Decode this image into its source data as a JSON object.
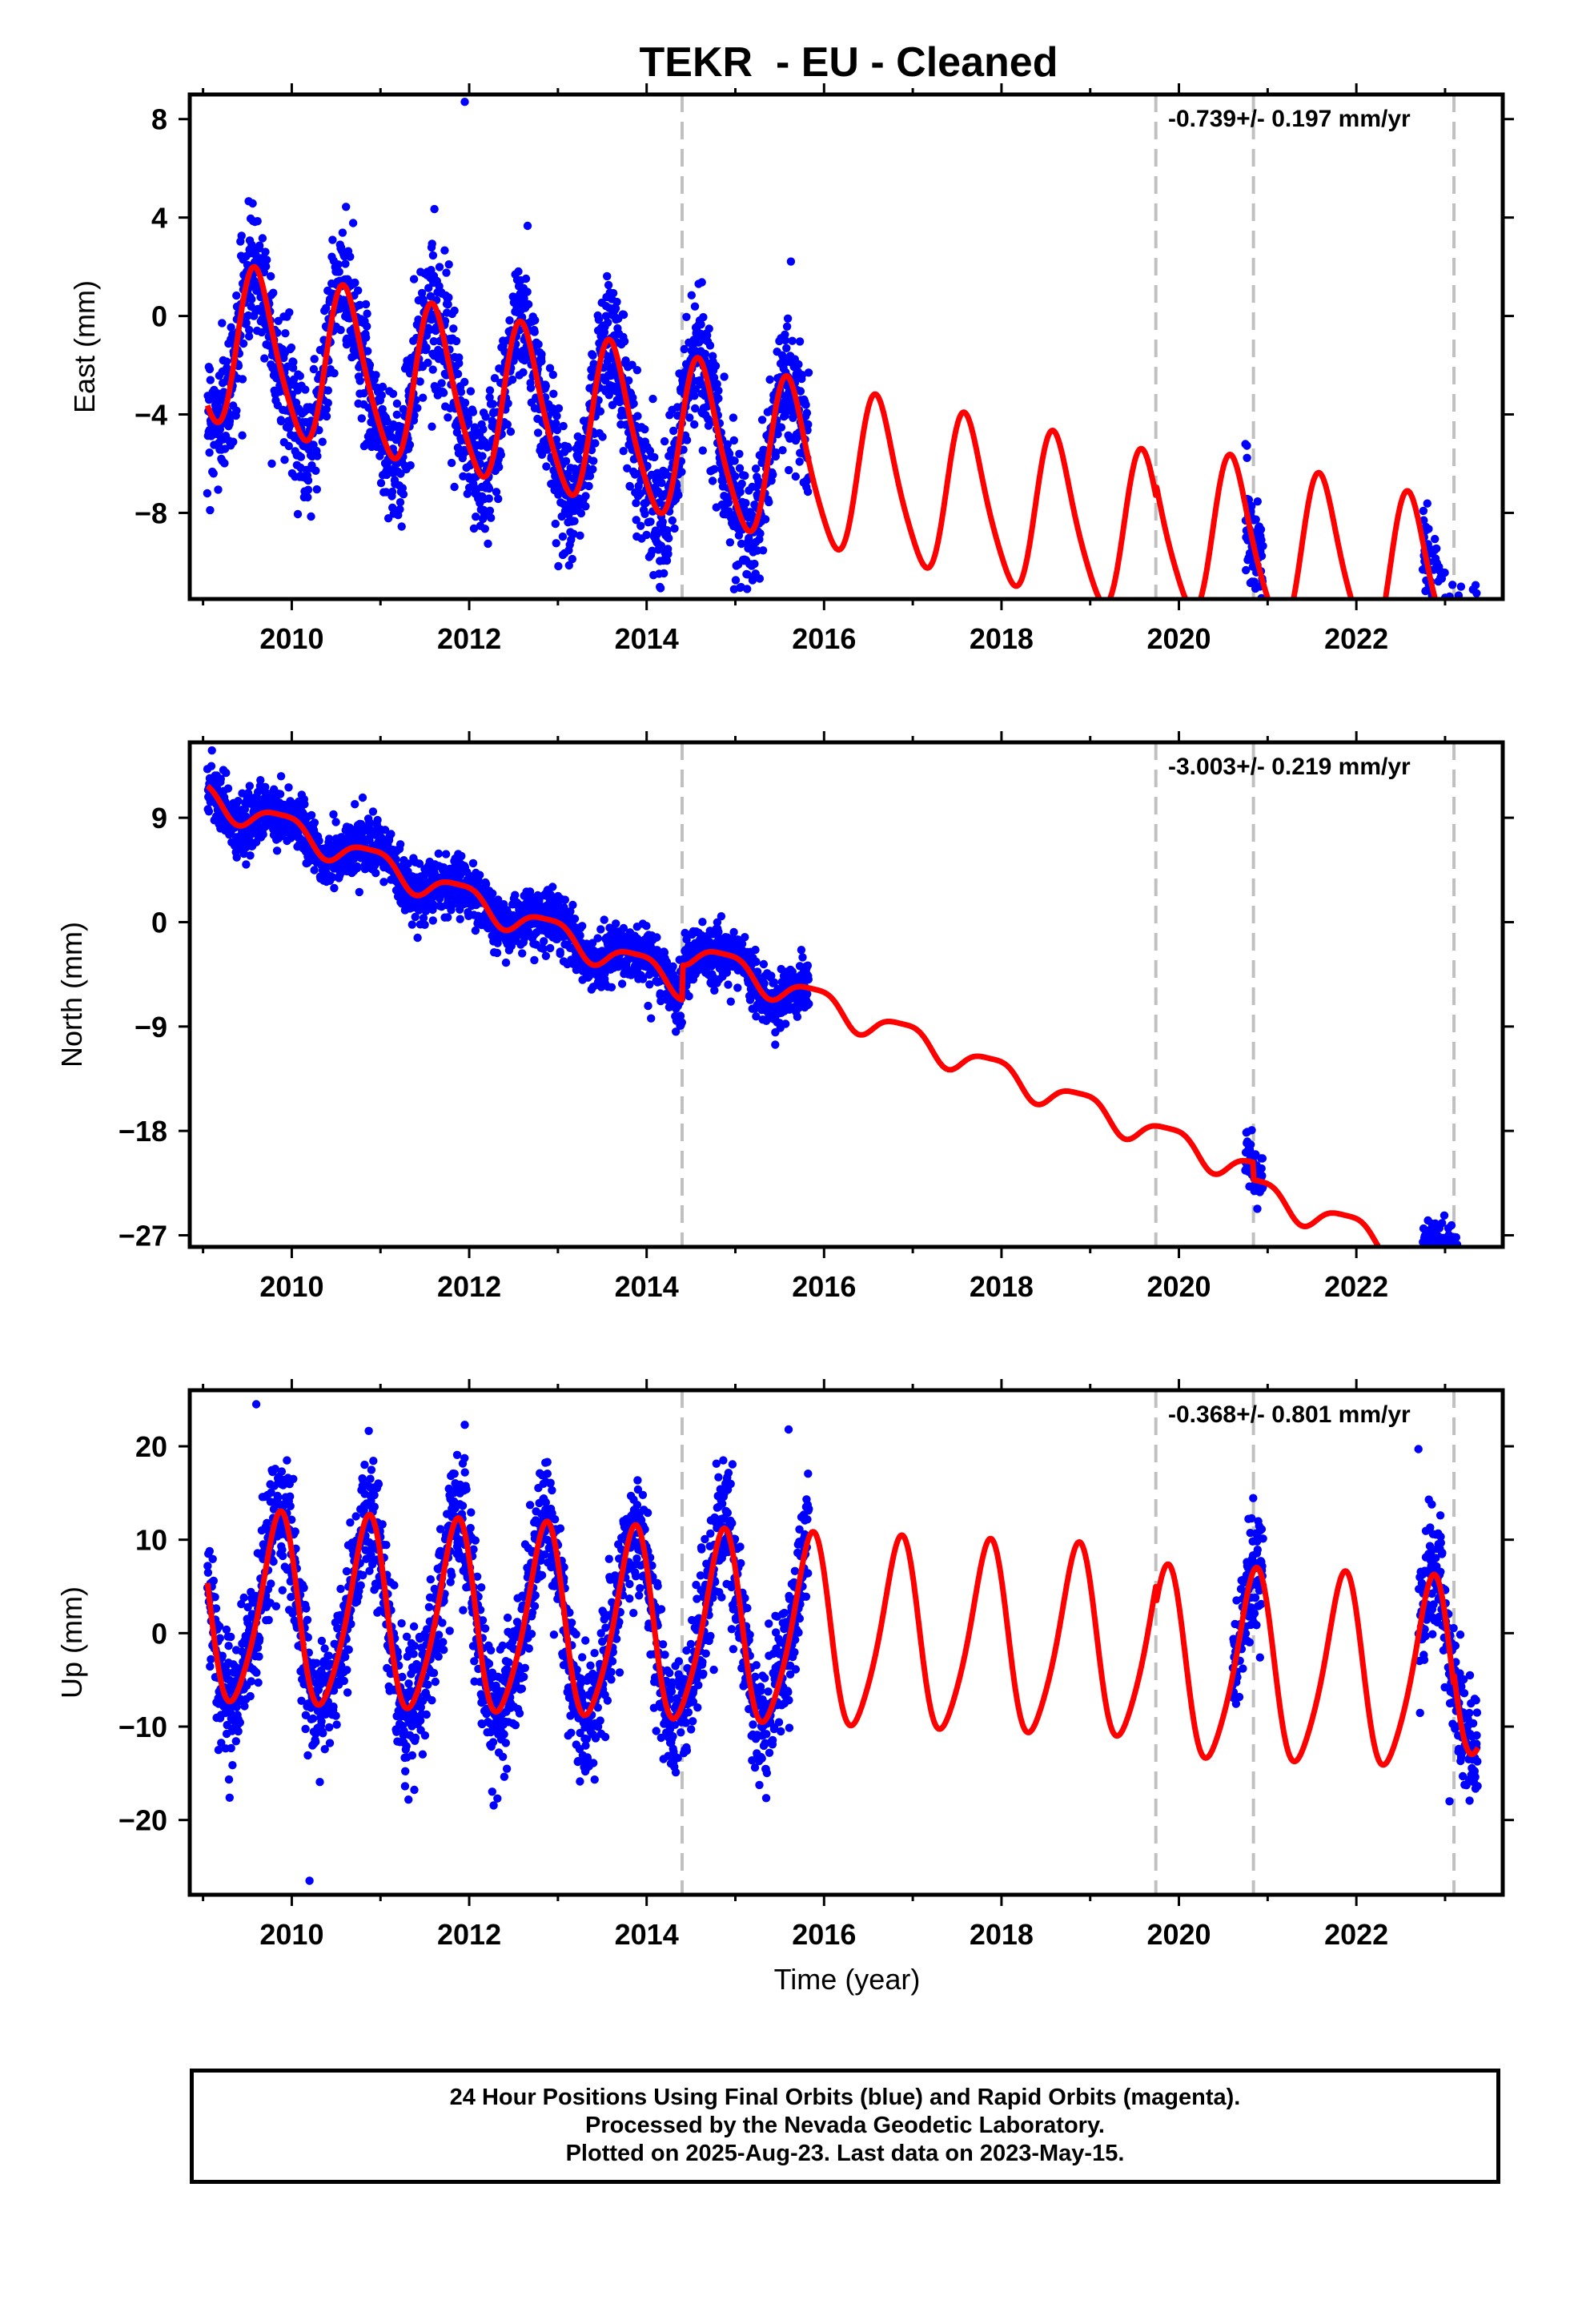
{
  "title": "TEKR  - EU - Cleaned",
  "xlabel": "Time (year)",
  "footer": {
    "line1": "24 Hour Positions Using Final Orbits (blue) and Rapid Orbits (magenta).",
    "line2": "Processed by the Nevada Geodetic Laboratory.",
    "line3": "Plotted on 2025-Aug-23. Last data on 2023-May-15."
  },
  "colors": {
    "data": "#0000ff",
    "model": "#ff0000",
    "breaks": "#c0c0c0",
    "axes": "#000000"
  },
  "chart_data": [
    {
      "type": "scatter",
      "component": "east",
      "ylabel": "East (mm)",
      "rate_text": "-0.739+/- 0.197 mm/yr",
      "xlim": [
        2008.85,
        2023.65
      ],
      "ylim": [
        -11.5,
        9
      ],
      "yticks": [
        8,
        4,
        0,
        -4,
        -8
      ],
      "xticks": [
        2010,
        2012,
        2014,
        2016,
        2018,
        2020,
        2022
      ],
      "breaks": [
        2014.4,
        2019.74,
        2020.84,
        2023.1
      ],
      "data_segments": [
        [
          2009.05,
          2015.83
        ],
        [
          2020.75,
          2020.95
        ],
        [
          2022.75,
          2023.37
        ]
      ],
      "model": {
        "offset": -1.1,
        "slope": -0.739,
        "ann_amp": 3.2,
        "ann_phase": -0.36,
        "sa_amp": 0.5,
        "sa_phase": 0.1,
        "steps": [
          [
            2019.74,
            0.5
          ],
          [
            2023.1,
            -0.9
          ]
        ]
      },
      "noise": 1.3,
      "outliers": [
        [
          2011.95,
          8.7
        ],
        [
          2023.18,
          -11.0
        ]
      ]
    },
    {
      "type": "scatter",
      "component": "north",
      "ylabel": "North (mm)",
      "rate_text": "-3.003+/- 0.219 mm/yr",
      "xlim": [
        2008.85,
        2023.65
      ],
      "ylim": [
        -28,
        15.5
      ],
      "yticks": [
        9,
        0,
        -9,
        -18,
        -27
      ],
      "xticks": [
        2010,
        2012,
        2014,
        2016,
        2018,
        2020,
        2022
      ],
      "breaks": [
        2014.4,
        2019.74,
        2020.84,
        2023.1
      ],
      "data_segments": [
        [
          2009.05,
          2015.83
        ],
        [
          2020.75,
          2020.95
        ],
        [
          2022.75,
          2023.37
        ]
      ],
      "model": {
        "offset": 11.0,
        "slope": -3.003,
        "ann_amp": 1.2,
        "ann_phase": 0.35,
        "sa_amp": 0.3,
        "sa_phase": 0.0,
        "steps": [
          [
            2014.4,
            3.0
          ],
          [
            2020.84,
            -1.5
          ]
        ]
      },
      "noise": 1.2,
      "outliers": [
        [
          2009.1,
          14.8
        ],
        [
          2014.05,
          -8.3
        ],
        [
          2015.45,
          -9.5
        ],
        [
          2022.95,
          -27.2
        ]
      ]
    },
    {
      "type": "scatter",
      "component": "up",
      "ylabel": "Up (mm)",
      "rate_text": "-0.368+/- 0.801 mm/yr",
      "xlim": [
        2008.85,
        2023.65
      ],
      "ylim": [
        -28,
        26
      ],
      "yticks": [
        20,
        10,
        0,
        -10,
        -20
      ],
      "xticks": [
        2010,
        2012,
        2014,
        2016,
        2018,
        2020,
        2022
      ],
      "breaks": [
        2014.4,
        2019.74,
        2020.84,
        2023.1
      ],
      "data_segments": [
        [
          2009.05,
          2015.83
        ],
        [
          2020.6,
          2020.95
        ],
        [
          2022.7,
          2023.37
        ]
      ],
      "model": {
        "offset": 2.3,
        "slope": -0.368,
        "ann_amp": 10.0,
        "ann_phase": 0.4,
        "sa_amp": 1.5,
        "sa_phase": 0.2,
        "steps": [
          [
            2019.74,
            -2.0
          ],
          [
            2023.1,
            1.5
          ]
        ]
      },
      "noise": 3.3,
      "outliers": [
        [
          2010.2,
          -26.5
        ],
        [
          2009.6,
          24.5
        ],
        [
          2011.95,
          22.3
        ],
        [
          2015.6,
          21.8
        ],
        [
          2022.7,
          19.7
        ],
        [
          2023.05,
          -18.0
        ]
      ]
    }
  ]
}
